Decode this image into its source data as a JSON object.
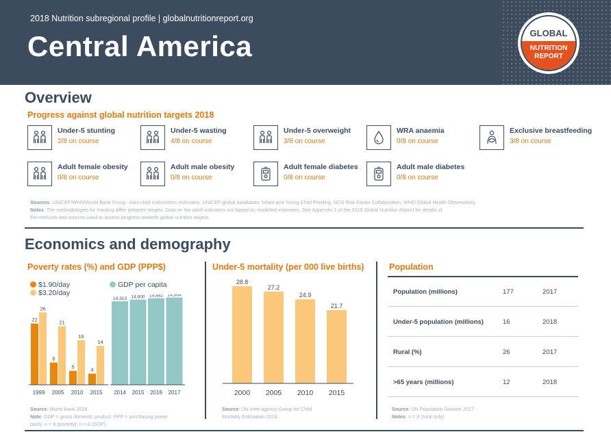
{
  "header": {
    "subtitle": "2018 Nutrition subregional profile | globalnutritionreport.org",
    "title": "Central America",
    "logo": {
      "line1": "GLOBAL",
      "line2": "NUTRITION",
      "line3": "REPORT"
    }
  },
  "overview": {
    "title": "Overview",
    "subtitle": "Progress against global nutrition targets 2018",
    "targets": [
      {
        "name": "Under-5 stunting",
        "status": "2/8 on course",
        "icon": "children-icon"
      },
      {
        "name": "Under-5 wasting",
        "status": "4/8 on course",
        "icon": "children-icon"
      },
      {
        "name": "Under-5 overweight",
        "status": "3/8 on course",
        "icon": "children-icon"
      },
      {
        "name": "WRA anaemia",
        "status": "0/8 on course",
        "icon": "blood-drop-icon"
      },
      {
        "name": "Exclusive breastfeeding",
        "status": "3/8 on course",
        "icon": "breastfeeding-icon"
      },
      {
        "name": "Adult female obesity",
        "status": "0/8 on course",
        "icon": "adults-icon"
      },
      {
        "name": "Adult male obesity",
        "status": "0/8 on course",
        "icon": "adults-icon"
      },
      {
        "name": "Adult female diabetes",
        "status": "0/8 on course",
        "icon": "glucose-meter-icon"
      },
      {
        "name": "Adult male diabetes",
        "status": "0/8 on course",
        "icon": "glucose-meter-icon"
      }
    ],
    "sources_label": "Sources",
    "sources_text": ": UNICEF/WHO/World Bank Group: Joint child malnutrition estimates, UNICEF global databases: Infant and Young Child Feeding, NCD Risk Factor Collaboration, WHO Global Health Observatory.",
    "notes_label": "Notes",
    "notes_text_1": ": The methodologies for tracking differ between targets. Data on the adult indicators are based on modelled estimates. See Appendix 1 of the ",
    "notes_report": "2018 Global Nutrition Report",
    "notes_text_2": " for details of",
    "notes_text_3": "the methods and sources used to assess progress towards global nutrition targets."
  },
  "economics": {
    "title": "Economics and demography",
    "poverty": {
      "title": "Poverty rates (%) and GDP (PPP$)",
      "legend_190": "$1.90/day",
      "legend_320": "$3.20/day",
      "legend_gdp": "GDP per capita",
      "source_label": "Source",
      "source_text": ": World Bank 2018.",
      "note_label": "Note",
      "note_text_1": ": GDP = gross domestic product. PPP = purchasing power",
      "note_text_2": "parity. n = 8 (poverty); n = 8 (GDP)."
    },
    "mortality": {
      "title": "Under-5 mortality (per 000 live births)",
      "source_label": "Source",
      "source_text_1": ": UN Inter-agency Group for Child",
      "source_text_2": "Mortality Estimation 2018."
    },
    "population": {
      "title": "Population",
      "rows": [
        {
          "label": "Population (millions)",
          "value": "177",
          "year": "2017"
        },
        {
          "label": "Under-5 population (millions)",
          "value": "16",
          "year": "2018"
        },
        {
          "label": "Rural (%)",
          "value": "26",
          "year": "2017"
        },
        {
          "label": ">65 years (millions)",
          "value": "12",
          "year": "2018"
        }
      ],
      "source_label": "Source",
      "source_text": ": UN Population Division 2017.",
      "note_label": "Notes",
      "note_text": ": n = 8 (rural only)."
    }
  },
  "colors": {
    "navy": "#3c4b5e",
    "orange": "#e07b12",
    "poverty_190": "#e8870e",
    "poverty_320": "#fcc97c",
    "gdp": "#93c8c6",
    "mortality": "#fcc97c",
    "logo_red": "#e4521f"
  },
  "chart_data": [
    {
      "type": "bar",
      "title": "Poverty rates (%)",
      "categories": [
        "1999",
        "2005",
        "2010",
        "2015"
      ],
      "series": [
        {
          "name": "$1.90/day",
          "values": [
            22,
            8,
            5,
            4
          ]
        },
        {
          "name": "$3.20/day",
          "values": [
            26,
            21,
            16,
            14
          ]
        }
      ],
      "data_labels_190": [
        "22",
        "8",
        "5",
        "4"
      ],
      "data_labels_320": [
        "26",
        "21",
        "16",
        "14"
      ],
      "ylim": [
        0,
        30
      ],
      "grid": false
    },
    {
      "type": "bar",
      "title": "GDP per capita",
      "categories": [
        "2014",
        "2015",
        "2016",
        "2017"
      ],
      "series": [
        {
          "name": "GDP per capita",
          "values": [
            14313,
            14600,
            14842,
            14964
          ]
        }
      ],
      "data_labels": [
        "14,313",
        "14,600",
        "14,842",
        "14,964"
      ],
      "ylim": [
        0,
        15500
      ],
      "grid": false
    },
    {
      "type": "bar",
      "title": "Under-5 mortality (per 000 live births)",
      "categories": [
        "2000",
        "2005",
        "2010",
        "2015"
      ],
      "values": [
        28.8,
        27.2,
        24.9,
        21.7
      ],
      "data_labels": [
        "28.8",
        "27.2",
        "24.9",
        "21.7"
      ],
      "ylim": [
        0,
        30
      ],
      "grid": false
    }
  ]
}
